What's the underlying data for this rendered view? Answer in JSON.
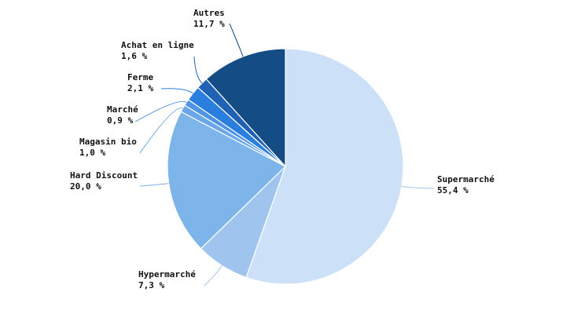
{
  "chart_data": {
    "type": "pie",
    "categories": [
      "Supermarché",
      "Hypermarché",
      "Hard Discount",
      "Magasin bio",
      "Marché",
      "Ferme",
      "Achat en ligne",
      "Autres"
    ],
    "values": [
      55.4,
      7.3,
      20.0,
      1.0,
      0.9,
      2.1,
      1.6,
      11.7
    ],
    "value_labels": [
      "55,4 %",
      "7,3 %",
      "20,0 %",
      "1,0 %",
      "0,9 %",
      "2,1 %",
      "1,6 %",
      "11,7 %"
    ],
    "colors": [
      "#cce0f7",
      "#9fc5ef",
      "#7db4ea",
      "#6aa6ea",
      "#4f93e4",
      "#2a7fde",
      "#1f62b3",
      "#144c85"
    ]
  }
}
